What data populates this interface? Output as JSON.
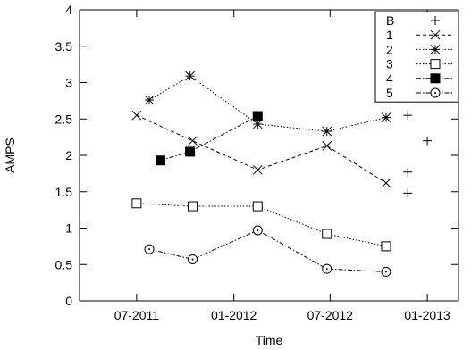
{
  "chart_data": {
    "type": "line",
    "xlabel": "Time",
    "ylabel": "AMPS",
    "xlim": [
      "2011-03-15",
      "2013-03-01"
    ],
    "ylim": [
      0,
      4
    ],
    "x_ticks": [
      {
        "date": "2011-07-01",
        "label": "07-2011"
      },
      {
        "date": "2012-01-01",
        "label": "01-2012"
      },
      {
        "date": "2012-07-01",
        "label": "07-2012"
      },
      {
        "date": "2013-01-01",
        "label": "01-2013"
      }
    ],
    "y_ticks": [
      {
        "value": 0,
        "label": "0"
      },
      {
        "value": 0.5,
        "label": "0.5"
      },
      {
        "value": 1,
        "label": "1"
      },
      {
        "value": 1.5,
        "label": "1.5"
      },
      {
        "value": 2,
        "label": "2"
      },
      {
        "value": 2.5,
        "label": "2.5"
      },
      {
        "value": 3,
        "label": "3"
      },
      {
        "value": 3.5,
        "label": "3.5"
      },
      {
        "value": 4,
        "label": "4"
      }
    ],
    "legend_position": "top-right",
    "series": [
      {
        "name": "B",
        "marker": "plus",
        "line": "none",
        "points": [
          [
            "2012-11-25",
            2.55
          ],
          [
            "2012-11-25",
            1.77
          ],
          [
            "2012-11-25",
            1.48
          ],
          [
            "2013-01-01",
            2.2
          ]
        ]
      },
      {
        "name": "1",
        "marker": "cross",
        "line": "dashed",
        "points": [
          [
            "2011-07-01",
            2.55
          ],
          [
            "2011-10-15",
            2.2
          ],
          [
            "2012-02-15",
            1.8
          ],
          [
            "2012-06-25",
            2.13
          ],
          [
            "2012-10-15",
            1.62
          ]
        ]
      },
      {
        "name": "2",
        "marker": "star",
        "line": "dotted",
        "points": [
          [
            "2011-07-25",
            2.76
          ],
          [
            "2011-10-10",
            3.09
          ],
          [
            "2012-02-15",
            2.43
          ],
          [
            "2012-06-25",
            2.33
          ],
          [
            "2012-10-15",
            2.52
          ]
        ]
      },
      {
        "name": "3",
        "marker": "open-square",
        "line": "dotted",
        "points": [
          [
            "2011-07-01",
            1.34
          ],
          [
            "2011-10-15",
            1.3
          ],
          [
            "2012-02-15",
            1.3
          ],
          [
            "2012-06-25",
            0.92
          ],
          [
            "2012-10-15",
            0.75
          ]
        ]
      },
      {
        "name": "4",
        "marker": "filled-square",
        "line": "dashdot",
        "points": [
          [
            "2011-08-15",
            1.93
          ],
          [
            "2011-10-10",
            2.05
          ],
          [
            "2012-02-15",
            2.54
          ]
        ]
      },
      {
        "name": "5",
        "marker": "open-circle",
        "line": "dashdot",
        "points": [
          [
            "2011-07-25",
            0.71
          ],
          [
            "2011-10-15",
            0.57
          ],
          [
            "2012-02-15",
            0.97
          ],
          [
            "2012-06-25",
            0.44
          ],
          [
            "2012-10-15",
            0.4
          ]
        ]
      }
    ]
  }
}
